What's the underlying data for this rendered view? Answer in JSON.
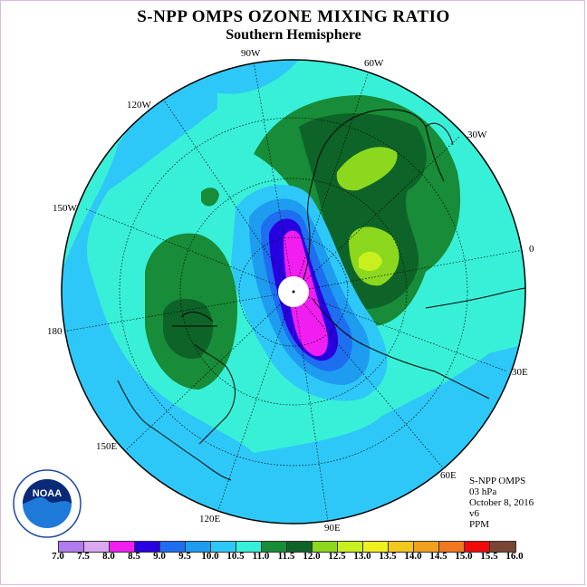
{
  "title": "S-NPP OMPS OZONE MIXING RATIO",
  "subtitle": "Southern Hemisphere",
  "longitude_labels": [
    "90W",
    "60W",
    "120W",
    "30W",
    "150W",
    "0",
    "180",
    "30E",
    "150E",
    "60E",
    "120E",
    "90E"
  ],
  "info": {
    "line1": "S-NPP OMPS",
    "line2": "03 hPa",
    "line3": "October 8, 2016",
    "line4": "v6",
    "line5": "PPM"
  },
  "logo_text": "NOAA",
  "colorbar": {
    "ticks": [
      "7.0",
      "7.5",
      "8.0",
      "8.5",
      "9.0",
      "9.5",
      "10.0",
      "10.5",
      "11.0",
      "11.5",
      "12.0",
      "12.5",
      "13.0",
      "13.5",
      "14.0",
      "14.5",
      "15.0",
      "15.5",
      "16.0"
    ],
    "colors": [
      "#b07cf0",
      "#d9a8f0",
      "#f01ef0",
      "#2800e0",
      "#1e6ef0",
      "#1e9cf0",
      "#2ec8f8",
      "#38f0d8",
      "#188c38",
      "#0e6428",
      "#8cd81e",
      "#c8f01e",
      "#f0f01e",
      "#f0c81e",
      "#f0a01e",
      "#f0781e",
      "#f00a0a",
      "#784632"
    ]
  },
  "colors": {
    "background": "#ffffff",
    "frame": "#d9b8e6"
  }
}
